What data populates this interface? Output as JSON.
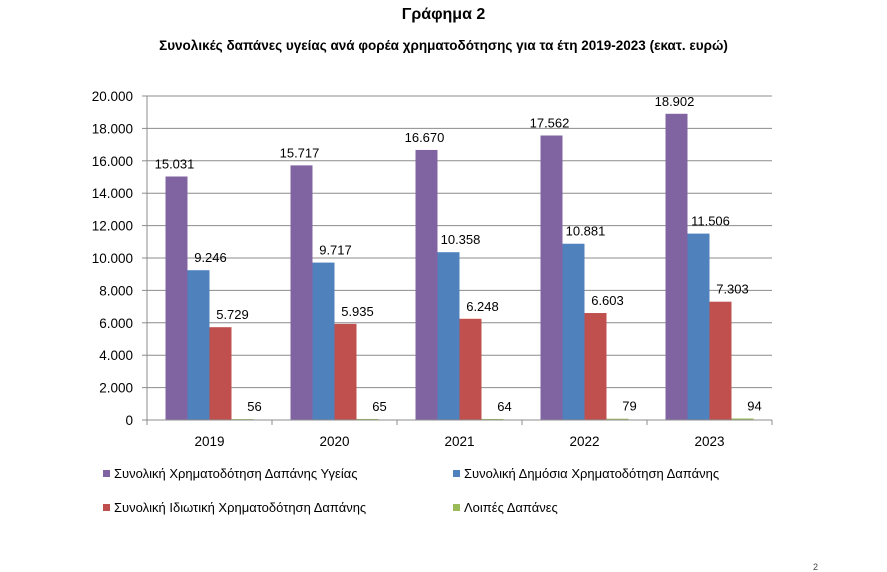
{
  "chart_data": {
    "type": "bar",
    "title": "Γράφημα 2",
    "subtitle": "Συνολικές δαπάνες υγείας ανά φορέα χρηματοδότησης για τα έτη 2019-2023 (εκατ. ευρώ)",
    "xlabel": "",
    "ylabel": "",
    "ylim": [
      0,
      20000
    ],
    "yticks": [
      0,
      2000,
      4000,
      6000,
      8000,
      10000,
      12000,
      14000,
      16000,
      18000,
      20000
    ],
    "ytick_labels": [
      "0",
      "2.000",
      "4.000",
      "6.000",
      "8.000",
      "10.000",
      "12.000",
      "14.000",
      "16.000",
      "18.000",
      "20.000"
    ],
    "grid": true,
    "legend_position": "bottom",
    "categories": [
      "2019",
      "2020",
      "2021",
      "2022",
      "2023"
    ],
    "series": [
      {
        "name": "Συνολική Χρηματοδότηση Δαπάνης Υγείας",
        "color": "#8064A2",
        "values": [
          15031,
          15717,
          16670,
          17562,
          18902
        ],
        "labels": [
          "15.031",
          "15.717",
          "16.670",
          "17.562",
          "18.902"
        ]
      },
      {
        "name": "Συνολική Δημόσια Χρηματοδότηση Δαπάνης",
        "color": "#4F81BD",
        "values": [
          9246,
          9717,
          10358,
          10881,
          11506
        ],
        "labels": [
          "9.246",
          "9.717",
          "10.358",
          "10.881",
          "11.506"
        ]
      },
      {
        "name": "Συνολική Ιδιωτική Χρηματοδότηση Δαπάνης",
        "color": "#C0504D",
        "values": [
          5729,
          5935,
          6248,
          6603,
          7303
        ],
        "labels": [
          "5.729",
          "5.935",
          "6.248",
          "6.603",
          "7.303"
        ]
      },
      {
        "name": "Λοιπές Δαπάνες",
        "color": "#9BBB59",
        "values": [
          56,
          65,
          64,
          79,
          94
        ],
        "labels": [
          "56",
          "65",
          "64",
          "79",
          "94"
        ]
      }
    ]
  },
  "page_number": "2"
}
